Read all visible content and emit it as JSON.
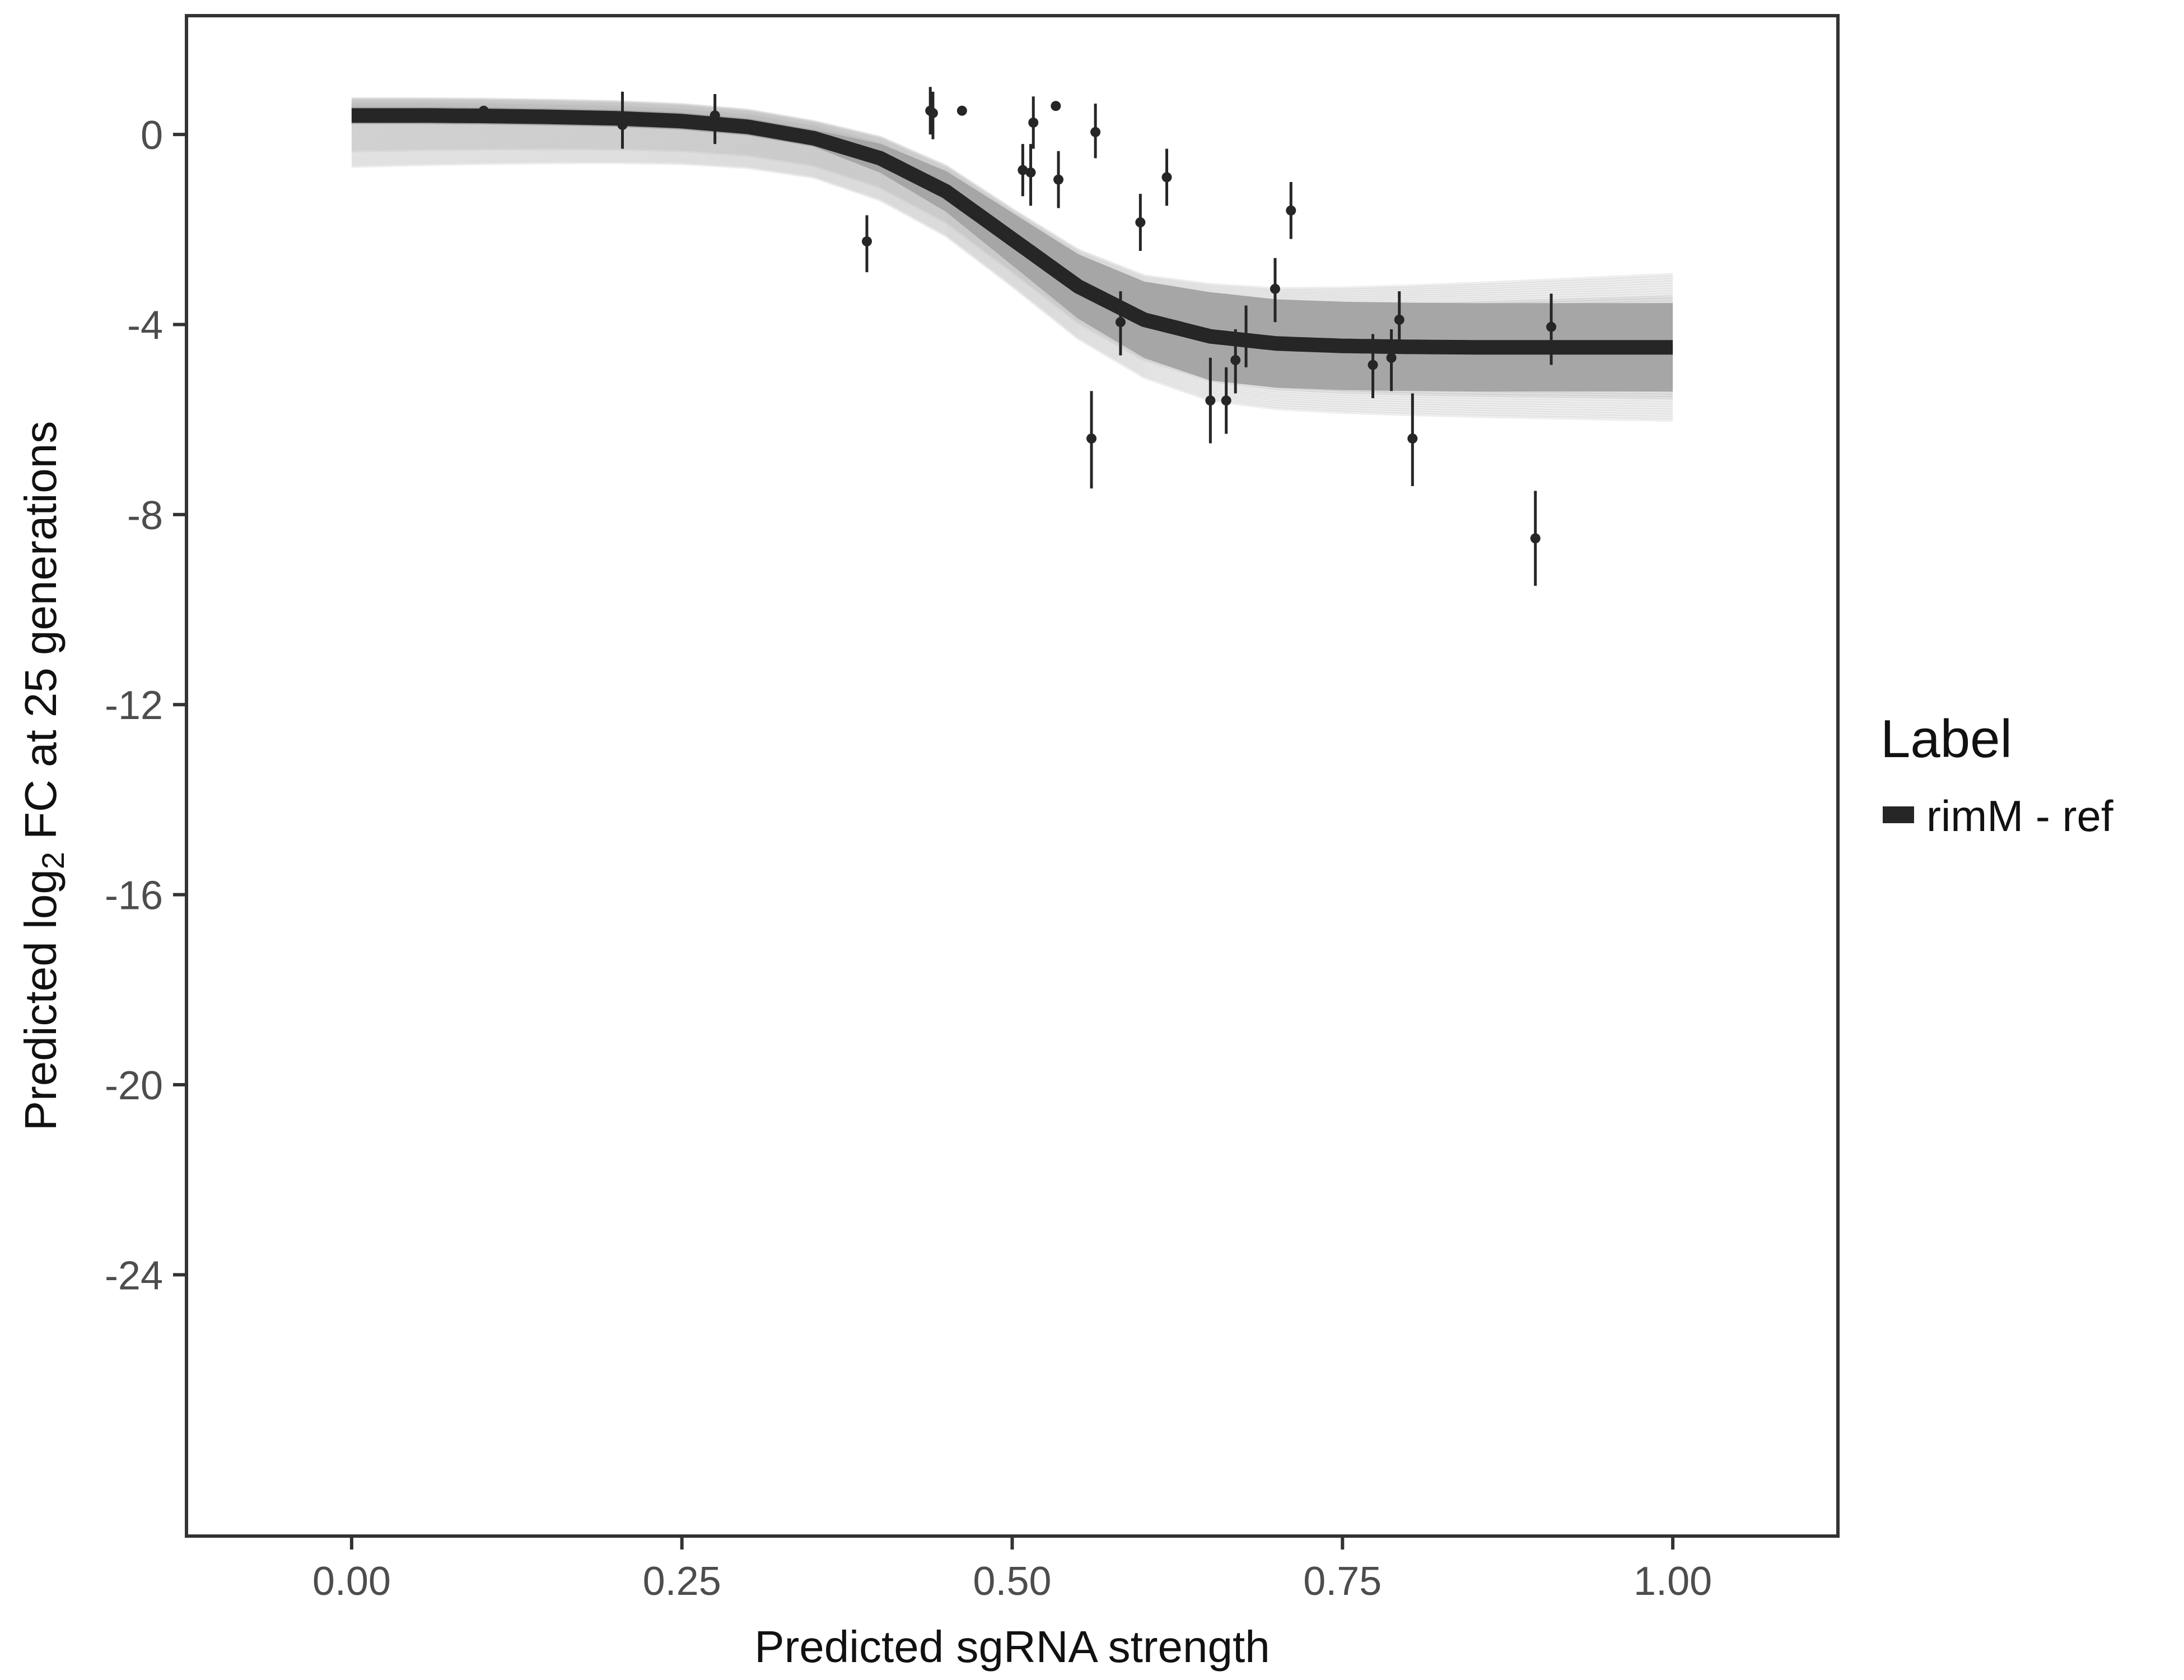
{
  "chart_data": {
    "type": "line",
    "title": "",
    "xlabel": "Predicted sgRNA strength",
    "ylabel_prefix": "Predicted  log",
    "ylabel_sub": "2",
    "ylabel_suffix": " FC at 25 generations",
    "xlim": [
      -0.125,
      1.125
    ],
    "ylim": [
      -29.5,
      2.5
    ],
    "x_ticks": [
      0.0,
      0.25,
      0.5,
      0.75,
      1.0
    ],
    "x_tick_labels": [
      "0.00",
      "0.25",
      "0.50",
      "0.75",
      "1.00"
    ],
    "y_ticks": [
      0,
      -4,
      -8,
      -12,
      -16,
      -20,
      -24
    ],
    "y_tick_labels": [
      "0",
      "-4",
      "-8",
      "-12",
      "-16",
      "-20",
      "-24"
    ],
    "grid": false,
    "legend": {
      "title": "Label",
      "position": "right",
      "entries": [
        {
          "label": "rimM - ref",
          "color": "#262626"
        }
      ]
    },
    "colors": {
      "fit_line": "#262626",
      "posterior_band": "#a6a6a6",
      "posterior_draws": "#bdbdbd",
      "points": "#262626"
    },
    "series": [
      {
        "name": "rimM - ref",
        "type": "line",
        "x": [
          0.0,
          0.05,
          0.1,
          0.15,
          0.2,
          0.25,
          0.3,
          0.35,
          0.4,
          0.45,
          0.5,
          0.55,
          0.6,
          0.65,
          0.7,
          0.75,
          0.8,
          0.85,
          0.9,
          0.95,
          1.0
        ],
        "y": [
          0.4,
          0.4,
          0.39,
          0.37,
          0.34,
          0.28,
          0.16,
          -0.08,
          -0.5,
          -1.2,
          -2.2,
          -3.2,
          -3.9,
          -4.25,
          -4.4,
          -4.45,
          -4.47,
          -4.48,
          -4.48,
          -4.48,
          -4.48
        ]
      },
      {
        "name": "",
        "type": "errorbar",
        "points": [
          {
            "x": 0.1,
            "y": 0.5,
            "lo": 0.5,
            "hi": 0.5
          },
          {
            "x": 0.205,
            "y": 0.2,
            "lo": -0.3,
            "hi": 0.9
          },
          {
            "x": 0.275,
            "y": 0.4,
            "lo": -0.2,
            "hi": 0.85
          },
          {
            "x": 0.39,
            "y": -2.25,
            "lo": -2.9,
            "hi": -1.7
          },
          {
            "x": 0.438,
            "y": 0.5,
            "lo": 0.0,
            "hi": 1.0
          },
          {
            "x": 0.44,
            "y": 0.45,
            "lo": -0.1,
            "hi": 0.9
          },
          {
            "x": 0.462,
            "y": 0.5,
            "lo": 0.5,
            "hi": 0.5
          },
          {
            "x": 0.508,
            "y": -0.75,
            "lo": -1.3,
            "hi": -0.2
          },
          {
            "x": 0.514,
            "y": -0.8,
            "lo": -1.5,
            "hi": -0.2
          },
          {
            "x": 0.516,
            "y": 0.25,
            "lo": -0.3,
            "hi": 0.8
          },
          {
            "x": 0.533,
            "y": 0.6,
            "lo": 0.6,
            "hi": 0.6
          },
          {
            "x": 0.535,
            "y": -0.95,
            "lo": -1.55,
            "hi": -0.35
          },
          {
            "x": 0.56,
            "y": -6.4,
            "lo": -7.45,
            "hi": -5.4
          },
          {
            "x": 0.563,
            "y": 0.05,
            "lo": -0.5,
            "hi": 0.65
          },
          {
            "x": 0.582,
            "y": -3.95,
            "lo": -4.65,
            "hi": -3.3
          },
          {
            "x": 0.597,
            "y": -1.85,
            "lo": -2.45,
            "hi": -1.25
          },
          {
            "x": 0.617,
            "y": -0.9,
            "lo": -1.5,
            "hi": -0.3
          },
          {
            "x": 0.65,
            "y": -5.6,
            "lo": -6.5,
            "hi": -4.7
          },
          {
            "x": 0.662,
            "y": -5.6,
            "lo": -6.3,
            "hi": -4.9
          },
          {
            "x": 0.669,
            "y": -4.75,
            "lo": -5.45,
            "hi": -4.1
          },
          {
            "x": 0.677,
            "y": -4.3,
            "lo": -4.9,
            "hi": -3.6
          },
          {
            "x": 0.699,
            "y": -3.25,
            "lo": -3.95,
            "hi": -2.6
          },
          {
            "x": 0.711,
            "y": -1.6,
            "lo": -2.2,
            "hi": -1.0
          },
          {
            "x": 0.773,
            "y": -4.85,
            "lo": -5.55,
            "hi": -4.2
          },
          {
            "x": 0.787,
            "y": -4.7,
            "lo": -5.4,
            "hi": -4.1
          },
          {
            "x": 0.793,
            "y": -3.9,
            "lo": -4.5,
            "hi": -3.3
          },
          {
            "x": 0.803,
            "y": -6.4,
            "lo": -7.4,
            "hi": -5.45
          },
          {
            "x": 0.896,
            "y": -8.5,
            "lo": -9.5,
            "hi": -7.5
          },
          {
            "x": 0.908,
            "y": -4.05,
            "lo": -4.85,
            "hi": -3.35
          }
        ]
      }
    ]
  }
}
